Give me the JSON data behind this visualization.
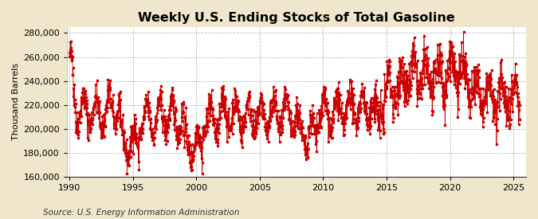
{
  "title": "Weekly U.S. Ending Stocks of Total Gasoline",
  "ylabel": "Thousand Barrels",
  "source": "Source: U.S. Energy Information Administration",
  "xlim": [
    1989.8,
    2026.0
  ],
  "ylim": [
    160000,
    285000
  ],
  "yticks": [
    160000,
    180000,
    200000,
    220000,
    240000,
    260000,
    280000
  ],
  "xticks": [
    1990,
    1995,
    2000,
    2005,
    2010,
    2015,
    2020,
    2025
  ],
  "figure_bg_color": "#f0e6cc",
  "plot_bg_color": "#ffffff",
  "line_color": "#cc0000",
  "marker": "s",
  "markersize": 1.8,
  "linestyle": "-",
  "linewidth": 0.5,
  "title_fontsize": 11.5,
  "label_fontsize": 8,
  "tick_fontsize": 8,
  "source_fontsize": 7.5,
  "seed": 42
}
